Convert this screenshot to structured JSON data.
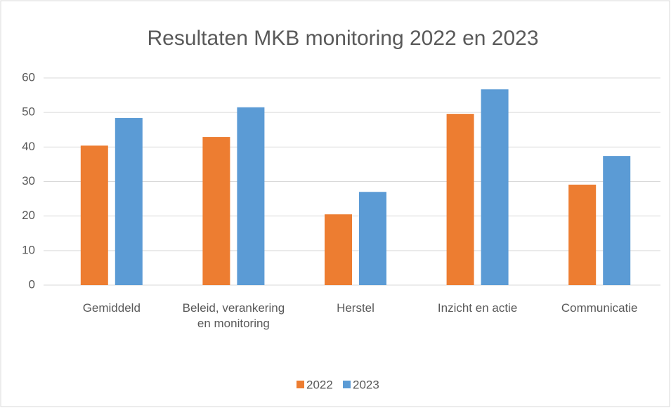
{
  "chart_data": {
    "type": "bar",
    "title": "Resultaten MKB monitoring 2022 en 2023",
    "categories": [
      "Gemiddeld",
      "Beleid, verankering en monitoring",
      "Herstel",
      "Inzicht en actie",
      "Communicatie"
    ],
    "series": [
      {
        "name": "2022",
        "color": "#ed7d31",
        "values": [
          40.4,
          42.9,
          20.5,
          49.6,
          29.1
        ]
      },
      {
        "name": "2023",
        "color": "#5b9bd5",
        "values": [
          48.4,
          51.5,
          27.0,
          56.7,
          37.4
        ]
      }
    ],
    "ylim": [
      0,
      60
    ],
    "yticks": [
      0,
      10,
      20,
      30,
      40,
      50,
      60
    ],
    "grid": true,
    "legend": "bottom"
  }
}
